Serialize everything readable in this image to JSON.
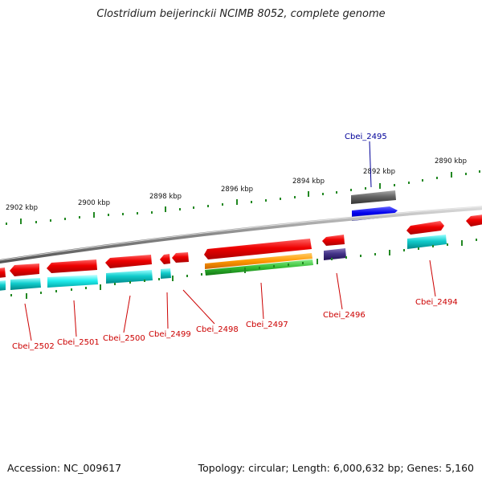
{
  "title": "Clostridium beijerinckii NCIMB 8052, complete genome",
  "footer": {
    "accession": "Accession: NC_009617",
    "summary": "Topology: circular; Length: 6,000,632 bp; Genes: 5,160"
  },
  "scale_labels": [
    "2902 kbp",
    "2900 kbp",
    "2898 kbp",
    "2896 kbp",
    "2894 kbp",
    "2892 kbp",
    "2890 kbp"
  ],
  "colors": {
    "gene": "#ee0000",
    "cds": "#11cccc",
    "rna": "#0000ee",
    "pseudo": "#666666",
    "misc": "#443388",
    "orange": "#ff9900",
    "green": "#33bb33",
    "backbone": "#888888",
    "tick": "#228822",
    "label_red": "#cc0000",
    "label_blue": "#000099"
  },
  "gene_labels": [
    {
      "name": "Cbei_2502",
      "color": "label_red"
    },
    {
      "name": "Cbei_2501",
      "color": "label_red"
    },
    {
      "name": "Cbei_2500",
      "color": "label_red"
    },
    {
      "name": "Cbei_2499",
      "color": "label_red"
    },
    {
      "name": "Cbei_2498",
      "color": "label_red"
    },
    {
      "name": "Cbei_2497",
      "color": "label_red"
    },
    {
      "name": "Cbei_2496",
      "color": "label_red"
    },
    {
      "name": "Cbei_2494",
      "color": "label_red"
    },
    {
      "name": "Cbei_2495",
      "color": "label_blue"
    }
  ]
}
